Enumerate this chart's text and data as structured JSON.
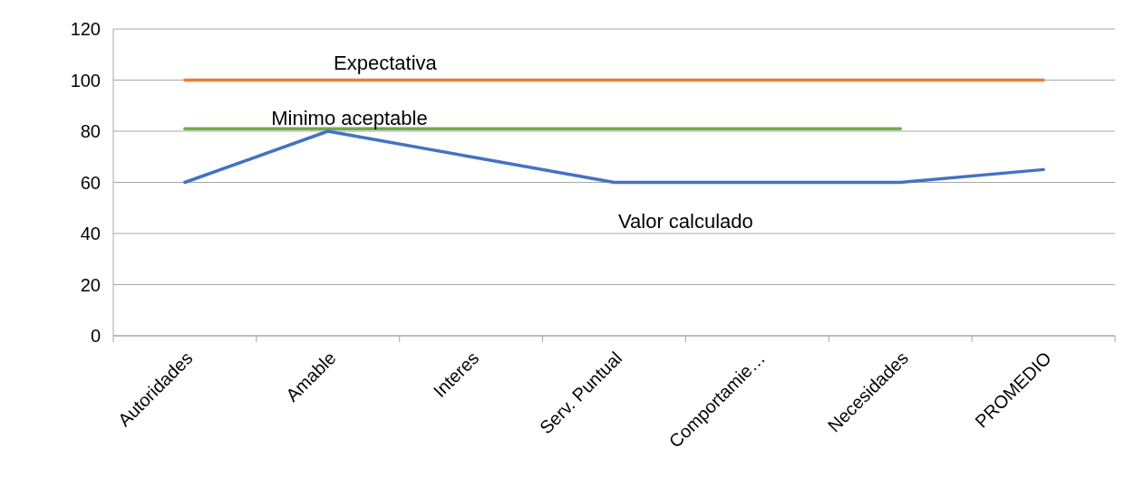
{
  "chart_data": {
    "type": "line",
    "categories": [
      "Autoridades",
      "Amable",
      "Interes",
      "Serv. Puntual",
      "Comportamie…",
      "Necesidades",
      "PROMEDIO"
    ],
    "series": [
      {
        "name": "Expectativa",
        "color": "#ed7d31",
        "values": [
          100,
          100,
          100,
          100,
          100,
          100,
          100
        ]
      },
      {
        "name": "Minimo aceptable",
        "color": "#70ad47",
        "values": [
          81,
          81,
          81,
          81,
          81,
          81,
          null
        ]
      },
      {
        "name": "Valor calculado",
        "color": "#4472c4",
        "values": [
          60,
          80,
          70,
          60,
          60,
          60,
          65
        ]
      }
    ],
    "ylim": [
      0,
      120
    ],
    "yticks": [
      0,
      20,
      40,
      60,
      80,
      100,
      120
    ],
    "grid": "y",
    "marker": "none",
    "line_style": "solid"
  }
}
